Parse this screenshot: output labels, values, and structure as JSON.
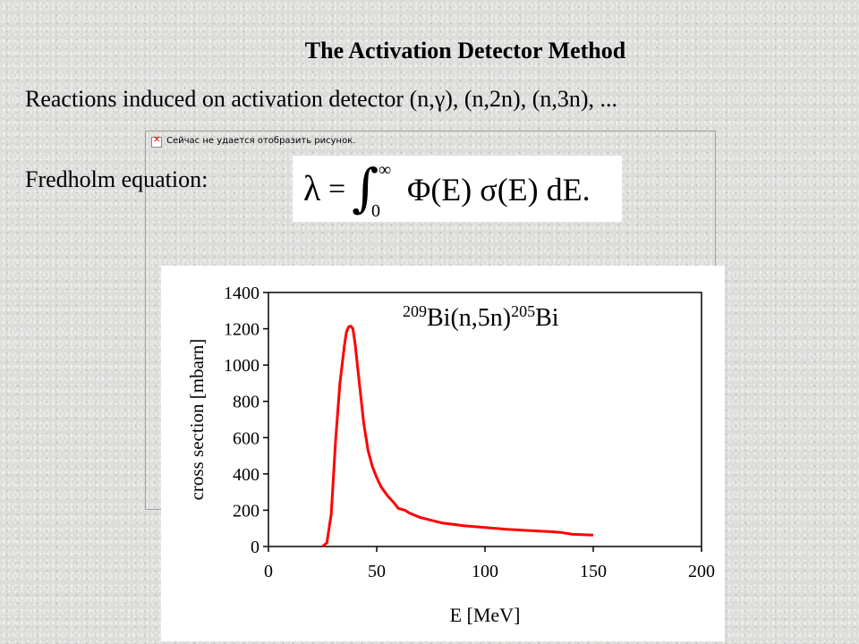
{
  "slide": {
    "title": "The Activation Detector Method",
    "reactions_text": "Reactions induced on activation detector  (n,γ), (n,2n), (n,3n), ...",
    "fredholm_label": "Fredholm equation:",
    "broken_image_text": "Сейчас не удается отобразить рисунок.",
    "icons": {
      "broken_image": "broken-image-icon"
    }
  },
  "equation": {
    "lhs": "λ",
    "equals": "=",
    "integral": "∫",
    "upper_limit": "∞",
    "lower_limit": "0",
    "integrand": "Φ(E) σ(E) dE."
  },
  "chart_data": {
    "type": "line",
    "title": "",
    "annotation": {
      "mass1": "209",
      "elem1": "Bi(n,5n)",
      "mass2": "205",
      "elem2": "Bi"
    },
    "xlabel": "E [MeV]",
    "ylabel": "cross section [mbarn]",
    "xlim": [
      0,
      200
    ],
    "ylim": [
      0,
      1400
    ],
    "xticks": [
      0,
      50,
      100,
      150,
      200
    ],
    "yticks": [
      0,
      200,
      400,
      600,
      800,
      1000,
      1200,
      1400
    ],
    "grid": false,
    "line_color": "#ff0000",
    "series": [
      {
        "x": [
          25,
          27,
          29,
          31,
          33,
          35,
          36,
          37,
          38,
          39,
          40,
          42,
          44,
          46,
          48,
          50,
          52,
          55,
          58,
          60,
          63,
          65,
          70,
          75,
          80,
          90,
          100,
          110,
          120,
          130,
          135,
          140,
          150
        ],
        "values": [
          0,
          20,
          180,
          580,
          900,
          1100,
          1180,
          1210,
          1215,
          1200,
          1120,
          900,
          680,
          530,
          440,
          380,
          330,
          280,
          240,
          210,
          200,
          185,
          160,
          145,
          130,
          115,
          105,
          95,
          88,
          82,
          78,
          68,
          63
        ]
      }
    ]
  }
}
